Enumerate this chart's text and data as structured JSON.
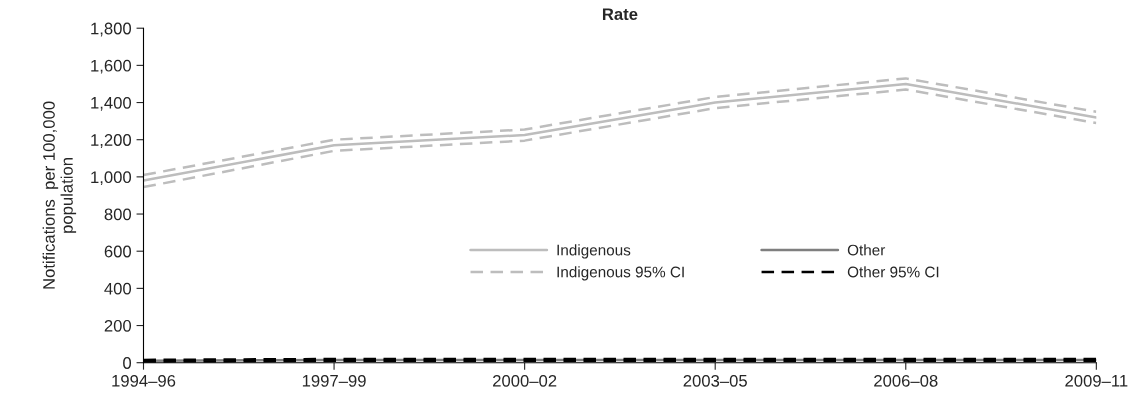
{
  "chart_data": {
    "type": "line",
    "title": "Rate",
    "ylabel": "Notifications  per 100,000\npopulation",
    "categories": [
      "1994–96",
      "1997–99",
      "2000–02",
      "2003–05",
      "2006–08",
      "2009–11"
    ],
    "series": [
      {
        "name": "Indigenous",
        "color": "#bdbdbd",
        "line_style": "solid",
        "values": [
          980,
          1170,
          1225,
          1400,
          1500,
          1320
        ]
      },
      {
        "name": "Other",
        "color": "#7f7f7f",
        "line_style": "solid",
        "values": [
          10,
          15,
          15,
          15,
          15,
          15
        ]
      },
      {
        "name": "Indigenous 95% CI",
        "color": "#bdbdbd",
        "line_style": "dashed",
        "values": [
          1010,
          1200,
          1255,
          1430,
          1530,
          1350
        ]
      },
      {
        "name": "Other 95% CI",
        "color": "#000000",
        "line_style": "dashed",
        "values": [
          15,
          20,
          20,
          20,
          20,
          20
        ]
      },
      {
        "color": "#bdbdbd",
        "line_style": "dashed",
        "values": [
          945,
          1140,
          1195,
          1370,
          1470,
          1290
        ]
      },
      {
        "color": "#000000",
        "line_style": "dashed",
        "values": [
          5,
          10,
          10,
          10,
          10,
          10
        ]
      }
    ],
    "ylim": [
      0,
      1800
    ],
    "yticks": [
      {
        "value": 0,
        "label": "0"
      },
      {
        "value": 200,
        "label": "200"
      },
      {
        "value": 400,
        "label": "400"
      },
      {
        "value": 600,
        "label": "600"
      },
      {
        "value": 800,
        "label": "800"
      },
      {
        "value": 1000,
        "label": "1,000"
      },
      {
        "value": 1200,
        "label": "1,200"
      },
      {
        "value": 1400,
        "label": "1,400"
      },
      {
        "value": 1600,
        "label": "1,600"
      },
      {
        "value": 1800,
        "label": "1,800"
      }
    ],
    "grid": false,
    "legend": "center right"
  }
}
